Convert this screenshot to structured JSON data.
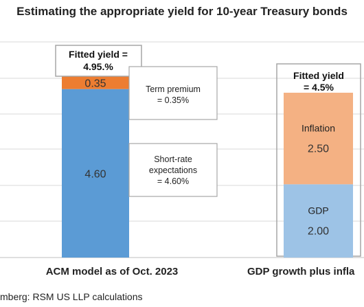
{
  "chart_data": {
    "type": "bar",
    "title": "Estimating the appropriate yield for 10-year Treasury bonds",
    "source": "mberg: RSM US LLP calculations",
    "ylim": [
      0,
      6
    ],
    "grid": true,
    "stacks": [
      {
        "category": "ACM model as of Oct. 2023",
        "total_label": [
          "Fitted yield =",
          "4.95.%"
        ],
        "segments": [
          {
            "name": "Short-rate expectations",
            "value": 4.6,
            "label": "4.60",
            "color": "#5b9bd5"
          },
          {
            "name": "Term premium",
            "value": 0.35,
            "label": "0.35",
            "color": "#ed7d31"
          }
        ],
        "callouts": [
          {
            "lines": [
              "Term premium",
              "= 0.35%"
            ]
          },
          {
            "lines": [
              "Short-rate",
              "expectations",
              "= 4.60%"
            ]
          }
        ]
      },
      {
        "category": "GDP growth plus infla",
        "total_label": [
          "Fitted yield",
          "= 4.5%"
        ],
        "segments": [
          {
            "name": "GDP",
            "value": 2.0,
            "label": "2.00",
            "color": "#9dc3e6"
          },
          {
            "name": "Inflation",
            "value": 2.5,
            "label": "2.50",
            "color": "#f4b183"
          }
        ]
      }
    ]
  }
}
